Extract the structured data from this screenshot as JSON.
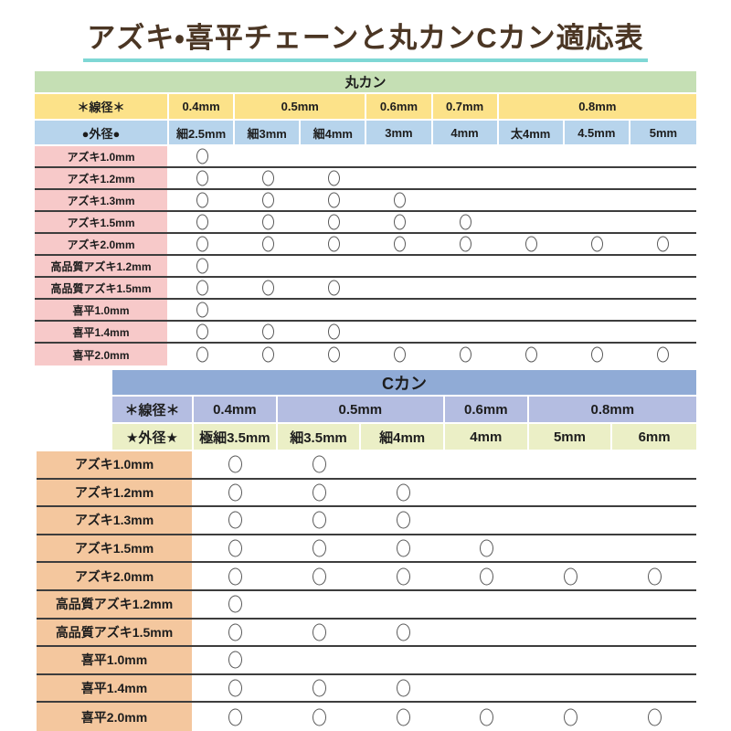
{
  "page": {
    "title": "アズキ・喜平チェーンと丸カンCカン適応表",
    "mark_symbol": "○"
  },
  "colors": {
    "title_text": "#4b3624",
    "title_underline": "#7fd7d5",
    "marukan_header_bg": "#c5dfb4",
    "marukan_wire_row_bg": "#fce289",
    "marukan_outer_row_bg": "#b7d4ec",
    "marukan_row_label_bg": "#f7c9c9",
    "ckan_header_bg": "#90abd6",
    "ckan_wire_row_bg": "#b4bde1",
    "ckan_outer_row_bg": "#ebefc6",
    "ckan_row_label_bg": "#f4c79e",
    "row_separator": "#3d3d3d",
    "mark_outline": "#5a5a5a"
  },
  "marukan_table": {
    "title": "丸カン",
    "wire_header_label": "＊線径＊",
    "outer_header_label": "●外径●",
    "wire_groups": [
      {
        "label": "0.4mm",
        "span": 1
      },
      {
        "label": "0.5mm",
        "span": 2
      },
      {
        "label": "0.6mm",
        "span": 1
      },
      {
        "label": "0.7mm",
        "span": 1
      },
      {
        "label": "0.8mm",
        "span": 3
      }
    ],
    "outer_columns": [
      "細2.5mm",
      "細3mm",
      "細4mm",
      "3mm",
      "4mm",
      "太4mm",
      "4.5mm",
      "5mm"
    ],
    "rows": [
      {
        "label": "アズキ1.0mm",
        "marks": [
          1,
          0,
          0,
          0,
          0,
          0,
          0,
          0
        ]
      },
      {
        "label": "アズキ1.2mm",
        "marks": [
          1,
          1,
          1,
          0,
          0,
          0,
          0,
          0
        ]
      },
      {
        "label": "アズキ1.3mm",
        "marks": [
          1,
          1,
          1,
          1,
          0,
          0,
          0,
          0
        ]
      },
      {
        "label": "アズキ1.5mm",
        "marks": [
          1,
          1,
          1,
          1,
          1,
          0,
          0,
          0
        ]
      },
      {
        "label": "アズキ2.0mm",
        "marks": [
          1,
          1,
          1,
          1,
          1,
          1,
          1,
          1
        ]
      },
      {
        "label": "高品質アズキ1.2mm",
        "marks": [
          1,
          0,
          0,
          0,
          0,
          0,
          0,
          0
        ]
      },
      {
        "label": "高品質アズキ1.5mm",
        "marks": [
          1,
          1,
          1,
          0,
          0,
          0,
          0,
          0
        ]
      },
      {
        "label": "喜平1.0mm",
        "marks": [
          1,
          0,
          0,
          0,
          0,
          0,
          0,
          0
        ]
      },
      {
        "label": "喜平1.4mm",
        "marks": [
          1,
          1,
          1,
          0,
          0,
          0,
          0,
          0
        ]
      },
      {
        "label": "喜平2.0mm",
        "marks": [
          1,
          1,
          1,
          1,
          1,
          1,
          1,
          1
        ]
      }
    ]
  },
  "ckan_table": {
    "title": "Cカン",
    "wire_header_label": "＊線径＊",
    "outer_header_label": "★外径★",
    "wire_groups": [
      {
        "label": "0.4mm",
        "span": 1
      },
      {
        "label": "0.5mm",
        "span": 2
      },
      {
        "label": "0.6mm",
        "span": 1
      },
      {
        "label": "0.8mm",
        "span": 2
      }
    ],
    "outer_columns": [
      "極細3.5mm",
      "細3.5mm",
      "細4mm",
      "4mm",
      "5mm",
      "6mm"
    ],
    "rows": [
      {
        "label": "アズキ1.0mm",
        "marks": [
          1,
          1,
          0,
          0,
          0,
          0
        ]
      },
      {
        "label": "アズキ1.2mm",
        "marks": [
          1,
          1,
          1,
          0,
          0,
          0
        ]
      },
      {
        "label": "アズキ1.3mm",
        "marks": [
          1,
          1,
          1,
          0,
          0,
          0
        ]
      },
      {
        "label": "アズキ1.5mm",
        "marks": [
          1,
          1,
          1,
          1,
          0,
          0
        ]
      },
      {
        "label": "アズキ2.0mm",
        "marks": [
          1,
          1,
          1,
          1,
          1,
          1
        ]
      },
      {
        "label": "高品質アズキ1.2mm",
        "marks": [
          1,
          0,
          0,
          0,
          0,
          0
        ]
      },
      {
        "label": "高品質アズキ1.5mm",
        "marks": [
          1,
          1,
          1,
          0,
          0,
          0
        ]
      },
      {
        "label": "喜平1.0mm",
        "marks": [
          1,
          0,
          0,
          0,
          0,
          0
        ]
      },
      {
        "label": "喜平1.4mm",
        "marks": [
          1,
          1,
          1,
          0,
          0,
          0
        ]
      },
      {
        "label": "喜平2.0mm",
        "marks": [
          1,
          1,
          1,
          1,
          1,
          1
        ]
      }
    ]
  }
}
